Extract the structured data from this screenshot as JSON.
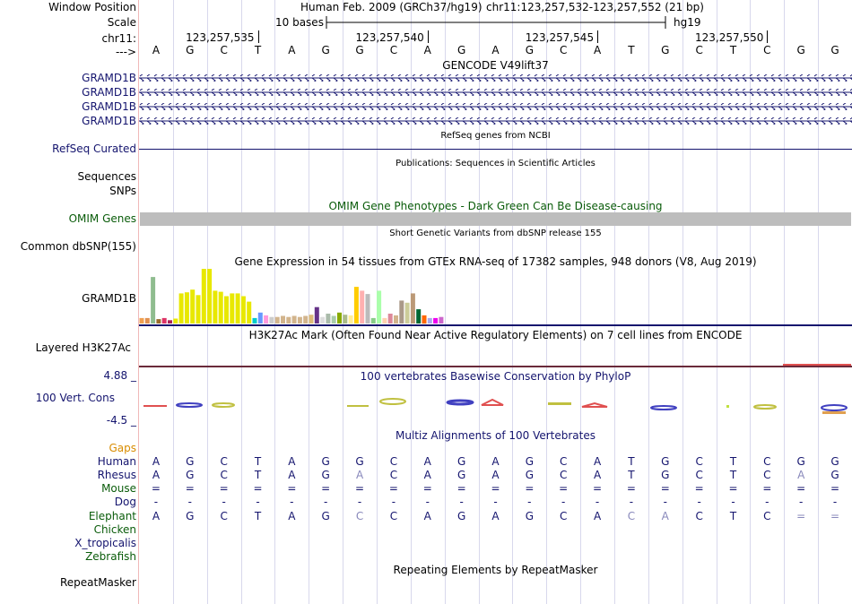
{
  "header": {
    "window_position_label": "Window Position",
    "scale_label": "Scale",
    "chrom_label": "chr11:",
    "arrow_label": "--->",
    "assembly": "Human Feb. 2009 (GRCh37/hg19)",
    "position": "chr11:123,257,532-123,257,552 (21 bp)",
    "scale_text": "10 bases",
    "db": "hg19",
    "ticks": [
      {
        "label": "123,257,535",
        "base_index": 3
      },
      {
        "label": "123,257,540",
        "base_index": 8
      },
      {
        "label": "123,257,545",
        "base_index": 13
      },
      {
        "label": "123,257,550",
        "base_index": 18
      }
    ]
  },
  "sequence": [
    "A",
    "G",
    "C",
    "T",
    "A",
    "G",
    "G",
    "C",
    "A",
    "G",
    "A",
    "G",
    "C",
    "A",
    "T",
    "G",
    "C",
    "T",
    "C",
    "G",
    "G"
  ],
  "tracks": {
    "gencode": {
      "title": "GENCODE V49lift37",
      "genes": [
        "GRAMD1B",
        "GRAMD1B",
        "GRAMD1B",
        "GRAMD1B"
      ],
      "color": "#14146e"
    },
    "refseq": {
      "label": "RefSeq Curated",
      "title": "RefSeq genes from NCBI"
    },
    "publications": {
      "title": "Publications: Sequences in Scientific Articles",
      "labels": [
        "Sequences",
        "SNPs"
      ]
    },
    "omim": {
      "label": "OMIM Genes",
      "title": "OMIM Gene Phenotypes - Dark Green Can Be Disease-causing",
      "color": "#0a5c0a"
    },
    "dbsnp": {
      "label": "Common dbSNP(155)",
      "title": "Short Genetic Variants from dbSNP release 155"
    },
    "gtex": {
      "label": "GRAMD1B",
      "title": "Gene Expression in 54 tissues from GTEx RNA-seq of 17382 samples, 948 donors (V8, Aug 2019)",
      "values": [
        10,
        10,
        85,
        8,
        10,
        6,
        9,
        55,
        57,
        62,
        52,
        100,
        100,
        60,
        58,
        50,
        55,
        55,
        50,
        40,
        10,
        20,
        15,
        12,
        12,
        14,
        12,
        14,
        12,
        14,
        16,
        30,
        12,
        18,
        14,
        20,
        16,
        15,
        67,
        60,
        54,
        10,
        60,
        10,
        18,
        15,
        42,
        38,
        55,
        26,
        15,
        10,
        10,
        12
      ],
      "colors": [
        "#f0a050",
        "#e09050",
        "#8fbc8f",
        "#9a6b2b",
        "#dd3366",
        "#aa2255",
        "#e8e800",
        "#e8e800",
        "#e8e800",
        "#e8e800",
        "#e8e800",
        "#e8e800",
        "#e8e800",
        "#e8e800",
        "#e8e800",
        "#e8e800",
        "#e8e800",
        "#e8e800",
        "#e8e800",
        "#e8e800",
        "#00cccc",
        "#6699ff",
        "#ff99dd",
        "#cccccc",
        "#d2b48c",
        "#d2b48c",
        "#d2b48c",
        "#d2b48c",
        "#d2b48c",
        "#d2b48c",
        "#ddbb77",
        "#663388",
        "#dddddd",
        "#aabbaa",
        "#aaccaa",
        "#88aa00",
        "#aabb88",
        "#ffee99",
        "#ffcc00",
        "#ffb0b0",
        "#bbbbbb",
        "#88cc88",
        "#aaffaa",
        "#ffd2b0",
        "#dd8899",
        "#d2b48c",
        "#aa9988",
        "#cccc99",
        "#bb9977",
        "#006633",
        "#ff6600",
        "#aaaaee",
        "#ee00ee",
        "#cc66cc"
      ]
    },
    "h3k27ac": {
      "label": "Layered H3K27Ac",
      "title": "H3K27Ac Mark (Often Found Near Active Regulatory Elements) on 7 cell lines from ENCODE"
    },
    "phylop": {
      "label": "100 Vert. Cons",
      "title": "100 vertebrates Basewise Conservation by PhyloP",
      "max": "4.88 _",
      "min": "-4.5 _",
      "color": "#14146e"
    },
    "multiz": {
      "title": "Multiz Alignments of 100 Vertebrates",
      "species": [
        {
          "name": "Gaps",
          "color": "#d98c00",
          "row": []
        },
        {
          "name": "Human",
          "color": "#14146e",
          "row": [
            "A",
            "G",
            "C",
            "T",
            "A",
            "G",
            "G",
            "C",
            "A",
            "G",
            "A",
            "G",
            "C",
            "A",
            "T",
            "G",
            "C",
            "T",
            "C",
            "G",
            "G"
          ]
        },
        {
          "name": "Rhesus",
          "color": "#14146e",
          "row": [
            "A",
            "G",
            "C",
            "T",
            "A",
            "G",
            "A",
            "C",
            "A",
            "G",
            "A",
            "G",
            "C",
            "A",
            "T",
            "G",
            "C",
            "T",
            "C",
            "A",
            "G"
          ],
          "grey": [
            6,
            19
          ]
        },
        {
          "name": "Mouse",
          "color": "#0a5c0a",
          "row": [
            "=",
            "=",
            "=",
            "=",
            "=",
            "=",
            "=",
            "=",
            "=",
            "=",
            "=",
            "=",
            "=",
            "=",
            "=",
            "=",
            "=",
            "=",
            "=",
            "=",
            "="
          ]
        },
        {
          "name": "Dog",
          "color": "#14146e",
          "row": [
            "-",
            "-",
            "-",
            "-",
            "-",
            "-",
            "-",
            "-",
            "-",
            "-",
            "-",
            "-",
            "-",
            "-",
            "-",
            "-",
            "-",
            "-",
            "-",
            "-",
            "-"
          ]
        },
        {
          "name": "Elephant",
          "color": "#0a5c0a",
          "row": [
            "A",
            "G",
            "C",
            "T",
            "A",
            "G",
            "C",
            "C",
            "A",
            "G",
            "A",
            "G",
            "C",
            "A",
            "C",
            "A",
            "C",
            "T",
            "C",
            "=",
            "="
          ],
          "grey": [
            6,
            14,
            15,
            19,
            20
          ]
        },
        {
          "name": "Chicken",
          "color": "#0a5c0a",
          "row": []
        },
        {
          "name": "X_tropicalis",
          "color": "#14146e",
          "row": []
        },
        {
          "name": "Zebrafish",
          "color": "#0a5c0a",
          "row": []
        }
      ]
    },
    "repeatmasker": {
      "label": "RepeatMasker",
      "title": "Repeating Elements by RepeatMasker"
    }
  }
}
